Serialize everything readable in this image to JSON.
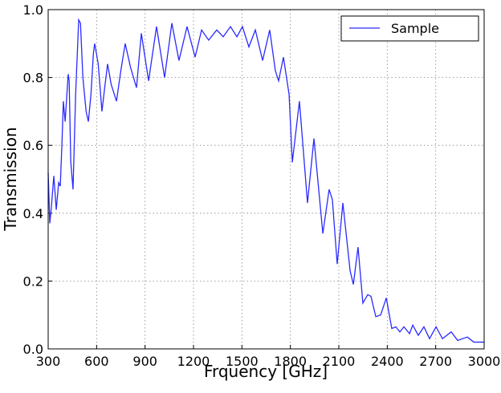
{
  "chart_data": {
    "type": "line",
    "x_label": "Frquency [GHz]",
    "y_label": "Transmission",
    "x": [
      300,
      310,
      320,
      335,
      350,
      365,
      375,
      385,
      394,
      405,
      424,
      430,
      440,
      454,
      470,
      489,
      500,
      515,
      535,
      549,
      565,
      580,
      588,
      610,
      633,
      650,
      668,
      690,
      723,
      750,
      777,
      810,
      847,
      877,
      922,
      971,
      1021,
      1066,
      1110,
      1160,
      1210,
      1250,
      1294,
      1344,
      1384,
      1429,
      1469,
      1503,
      1543,
      1583,
      1628,
      1672,
      1707,
      1727,
      1757,
      1792,
      1812,
      1856,
      1906,
      1946,
      2001,
      2040,
      2060,
      2090,
      2125,
      2170,
      2190,
      2219,
      2249,
      2279,
      2299,
      2329,
      2359,
      2394,
      2428,
      2453,
      2478,
      2503,
      2538,
      2558,
      2592,
      2627,
      2662,
      2702,
      2742,
      2796,
      2836,
      2896,
      2936,
      3000
    ],
    "series": [
      {
        "name": "Sample",
        "color": "#2a2aff",
        "values": [
          0.52,
          0.37,
          0.42,
          0.51,
          0.41,
          0.49,
          0.48,
          0.6,
          0.73,
          0.67,
          0.81,
          0.79,
          0.55,
          0.47,
          0.75,
          0.97,
          0.96,
          0.8,
          0.7,
          0.67,
          0.75,
          0.87,
          0.9,
          0.84,
          0.7,
          0.77,
          0.84,
          0.78,
          0.73,
          0.82,
          0.9,
          0.83,
          0.77,
          0.93,
          0.79,
          0.95,
          0.8,
          0.96,
          0.85,
          0.95,
          0.86,
          0.94,
          0.91,
          0.94,
          0.92,
          0.95,
          0.92,
          0.95,
          0.89,
          0.94,
          0.85,
          0.94,
          0.82,
          0.79,
          0.86,
          0.75,
          0.55,
          0.73,
          0.43,
          0.62,
          0.34,
          0.47,
          0.44,
          0.25,
          0.43,
          0.23,
          0.19,
          0.3,
          0.135,
          0.16,
          0.155,
          0.095,
          0.1,
          0.15,
          0.06,
          0.065,
          0.05,
          0.065,
          0.045,
          0.07,
          0.04,
          0.065,
          0.03,
          0.065,
          0.03,
          0.05,
          0.025,
          0.035,
          0.02,
          0.02
        ]
      }
    ],
    "xlim": [
      300,
      3000
    ],
    "xticks": [
      300,
      600,
      900,
      1200,
      1500,
      1800,
      2100,
      2400,
      2700,
      3000
    ],
    "ylim": [
      0,
      1
    ],
    "yticks": [
      {
        "value": 0,
        "label": "0.0"
      },
      0.2,
      0.4,
      0.6,
      0.8,
      {
        "value": 1,
        "label": "1.0"
      }
    ],
    "grid": true,
    "legend": "upper right"
  }
}
